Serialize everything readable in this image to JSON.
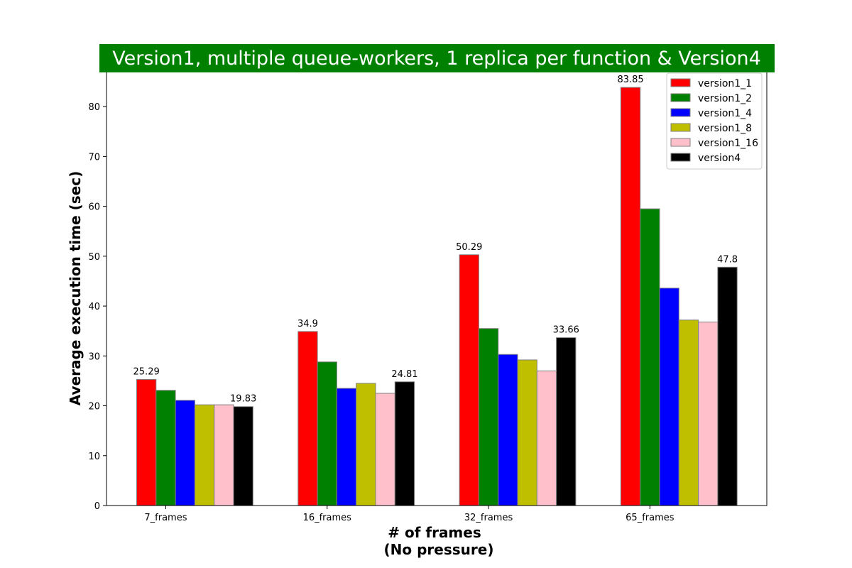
{
  "chart_data": {
    "type": "bar",
    "title": "Version1, multiple queue-workers, 1 replica per function & Version4",
    "title_background": "#008000",
    "title_color": "#ffffff",
    "xlabel": "# of frames",
    "xlabel_sub": "(No pressure)",
    "ylabel": "Average execution time (sec)",
    "ylim": [
      0,
      87
    ],
    "yticks": [
      0,
      10,
      20,
      30,
      40,
      50,
      60,
      70,
      80
    ],
    "grid": false,
    "legend_position": "top-right",
    "categories": [
      "7_frames",
      "16_frames",
      "32_frames",
      "65_frames"
    ],
    "series": [
      {
        "name": "version1_1",
        "color": "#ff0000",
        "values": [
          25.29,
          34.9,
          50.29,
          83.85
        ]
      },
      {
        "name": "version1_2",
        "color": "#008000",
        "values": [
          23.1,
          28.8,
          35.5,
          59.5
        ]
      },
      {
        "name": "version1_4",
        "color": "#0000ff",
        "values": [
          21.1,
          23.5,
          30.3,
          43.6
        ]
      },
      {
        "name": "version1_8",
        "color": "#bfbf00",
        "values": [
          20.2,
          24.5,
          29.2,
          37.2
        ]
      },
      {
        "name": "version1_16",
        "color": "#ffc0cb",
        "values": [
          20.2,
          22.5,
          27.0,
          36.8
        ]
      },
      {
        "name": "version4",
        "color": "#000000",
        "values": [
          19.83,
          24.81,
          33.66,
          47.8
        ]
      }
    ],
    "labeled_series": [
      "version1_1",
      "version4"
    ]
  }
}
